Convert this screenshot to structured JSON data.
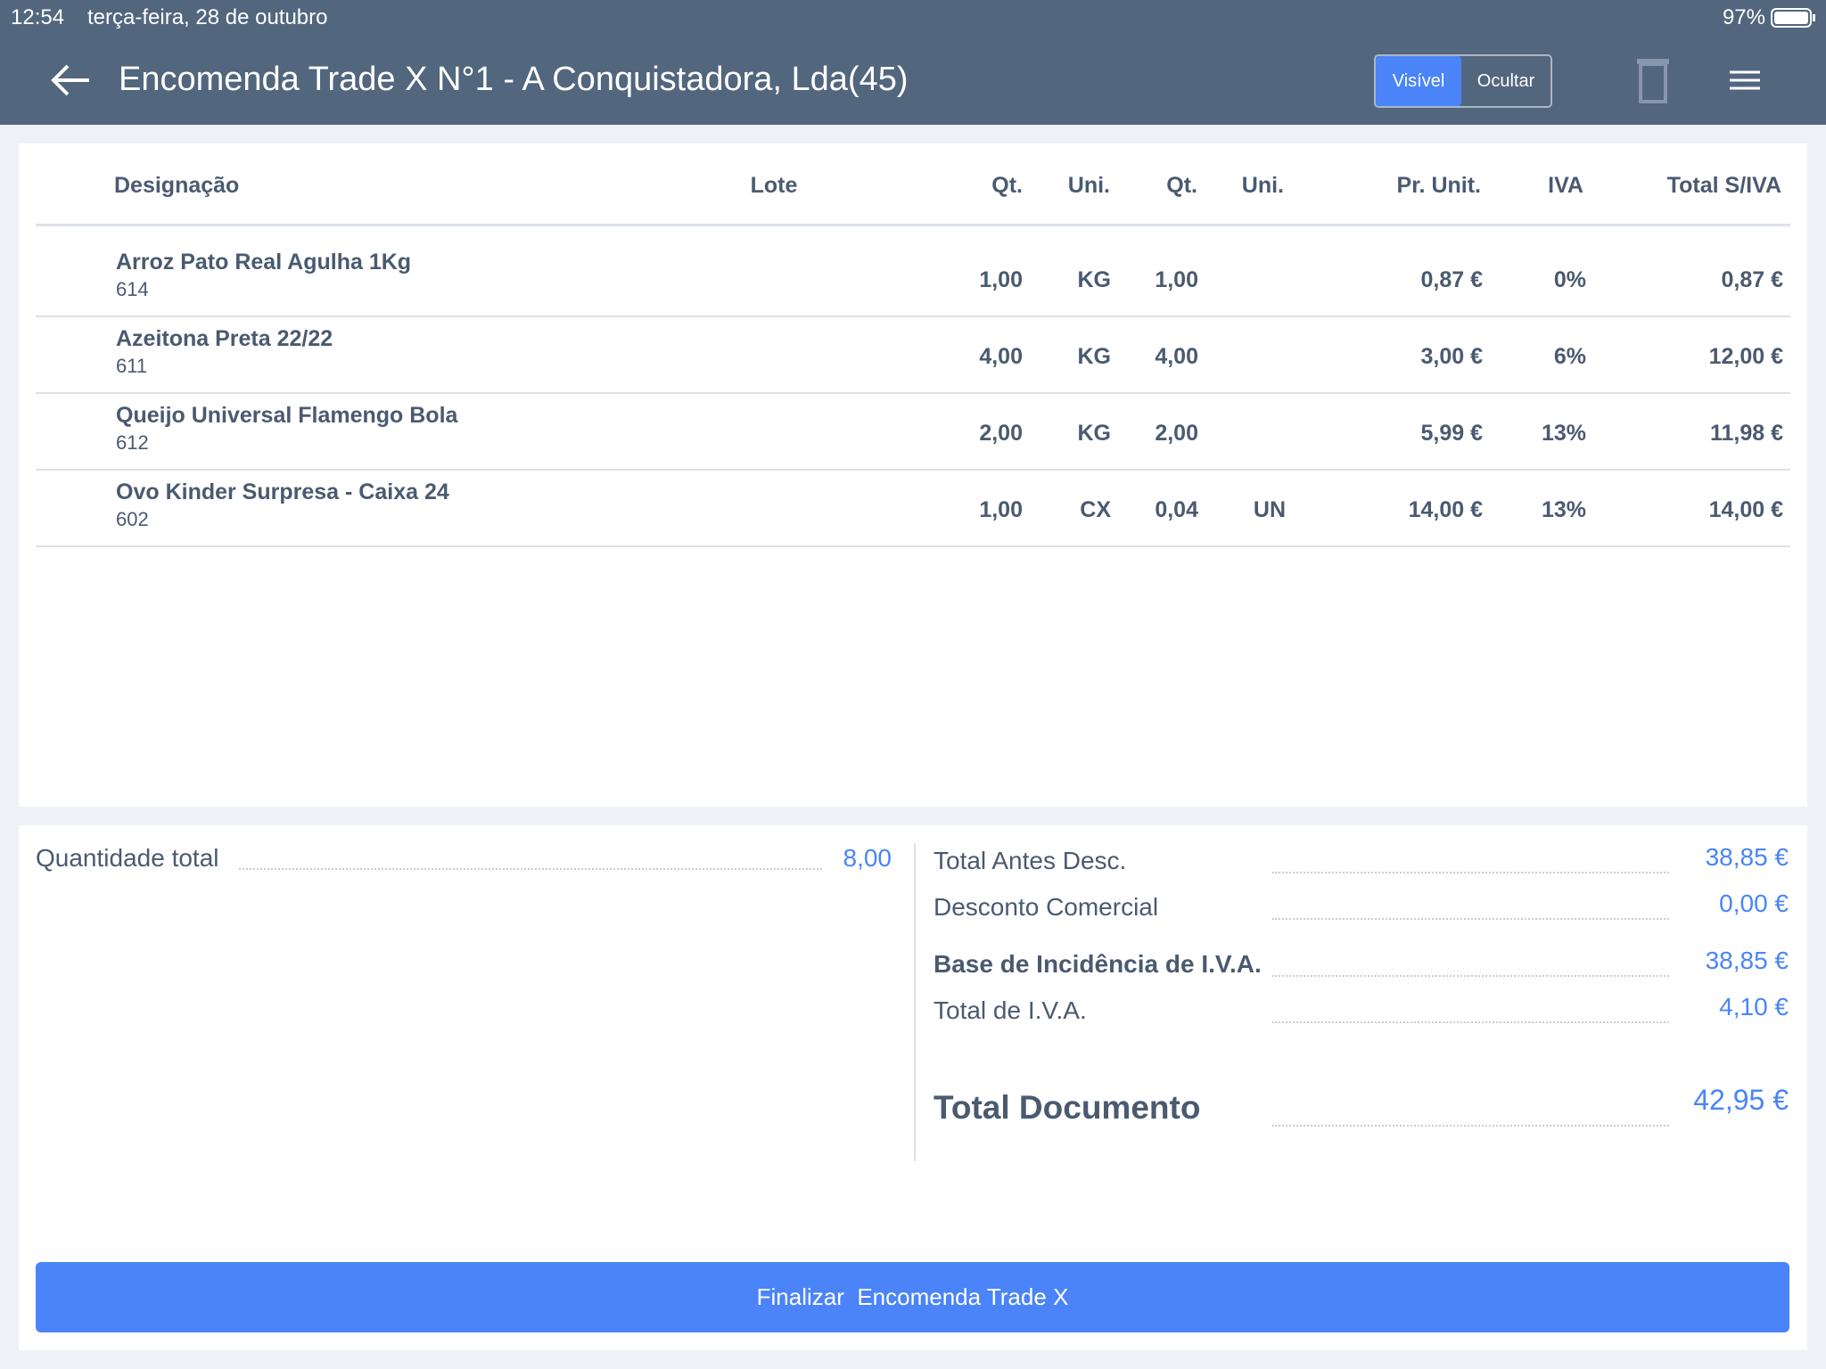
{
  "status_bar": {
    "time": "12:54",
    "date": "terça-feira, 28 de outubro",
    "battery": "97%"
  },
  "header": {
    "title": "Encomenda Trade X N°1 - A Conquistadora, Lda(45)",
    "toggle": [
      "Visível",
      "Ocultar"
    ]
  },
  "table": {
    "columns": [
      "Designação",
      "Lote",
      "Qt.",
      "Uni.",
      "Qt.",
      "Uni.",
      "Pr. Unit.",
      "IVA",
      "Total S/IVA"
    ],
    "rows": [
      {
        "name": "Arroz Pato Real Agulha 1Kg",
        "code": "614",
        "qty": "1,00",
        "unit": "KG",
        "qty2": "1,00",
        "price": "0,87 €",
        "vat": "0%",
        "total": "0,87 €"
      },
      {
        "name": "Azeitona Preta 22/22",
        "code": "611",
        "qty": "4,00",
        "unit": "KG",
        "qty2": "4,00",
        "price": "3,00 €",
        "vat": "6%",
        "total": "12,00 €"
      },
      {
        "name": "Queijo Universal Flamengo Bola",
        "code": "612",
        "qty": "2,00",
        "unit": "KG",
        "qty2": "2,00",
        "price": "5,99 €",
        "vat": "13%",
        "total": "11,98 €"
      },
      {
        "name": "Ovo Kinder Surpresa - Caixa 24",
        "code": "602",
        "qty": "1,00",
        "unit": "CX",
        "qty2": "0,04",
        "unit2": "UN",
        "price": "14,00 €",
        "vat": "13%",
        "total": "14,00 €"
      }
    ]
  },
  "summary": {
    "quantity_total": {
      "label": "Quantidade total",
      "value": "8,00"
    },
    "totals": [
      {
        "label": "Total Antes Desc.",
        "value": "38,85 €"
      },
      {
        "label": "Desconto Comercial",
        "value": "0,00 €"
      },
      {
        "label": "Base de Incidência de I.V.A.",
        "value": "38,85 €"
      },
      {
        "label": "Total de I.V.A.",
        "value": "4,10 €"
      },
      {
        "label": "Total Documento",
        "value": "42,95 €"
      }
    ]
  },
  "button": "Finalizar  Encomenda Trade X"
}
